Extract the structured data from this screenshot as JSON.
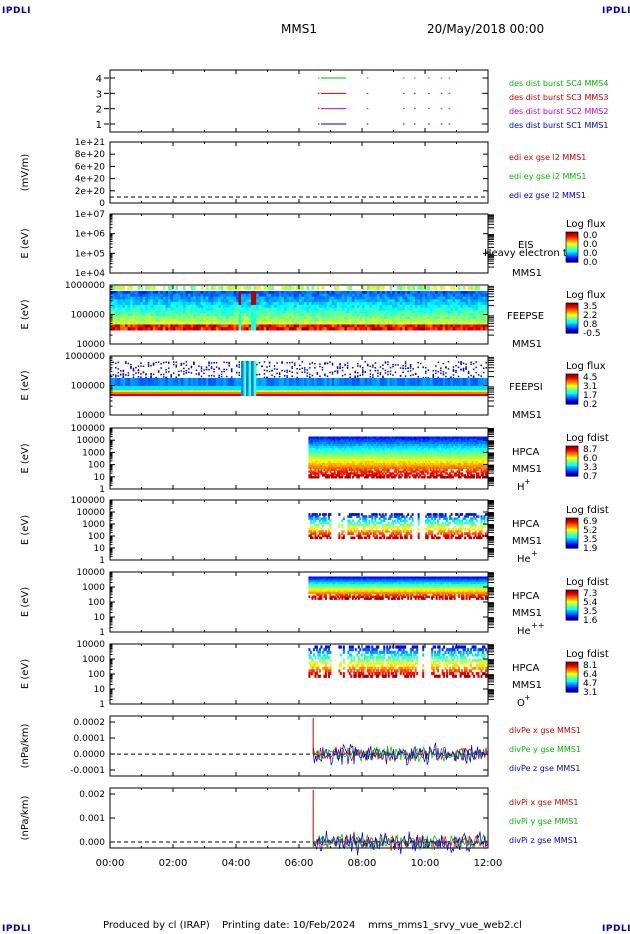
{
  "corners": {
    "top_left": "IPDLI",
    "top_right": "IPDLI",
    "bottom_left": "IPDLI",
    "bottom_right": "IPDLI"
  },
  "header": {
    "title": "MMS1",
    "date": "20/May/2018 00:00"
  },
  "footer": {
    "produced": "Produced by cl (IRAP)",
    "printing": "Printing date: 10/Feb/2024",
    "script": "mms_mms1_srvy_vue_web2.cl"
  },
  "colors": {
    "red": "#cc0000",
    "magenta": "#cc00cc",
    "green": "#00bb00",
    "blue": "#0000cc"
  },
  "chart_data": [
    {
      "type": "line",
      "panel": "burst",
      "x_range": [
        "00:00",
        "12:00"
      ],
      "yticks": [
        "1",
        "2",
        "3",
        "4"
      ],
      "series": [
        {
          "name": "des dist burst SC1 MMS1",
          "color": "#0000cc",
          "level": 1,
          "intervals": [
            [
              6.6,
              6.65
            ],
            [
              6.7,
              7.5
            ],
            [
              8.15,
              8.2
            ],
            [
              9.3,
              9.35
            ],
            [
              9.65,
              9.7
            ],
            [
              10.1,
              10.15
            ],
            [
              10.5,
              10.55
            ],
            [
              10.75,
              10.8
            ],
            [
              11.8,
              11.85
            ]
          ]
        },
        {
          "name": "des dist burst SC2 MMS2",
          "color": "#cc00cc",
          "level": 2,
          "intervals": [
            [
              6.6,
              6.65
            ],
            [
              6.7,
              7.5
            ],
            [
              8.15,
              8.2
            ],
            [
              9.3,
              9.35
            ],
            [
              9.65,
              9.7
            ],
            [
              10.1,
              10.15
            ],
            [
              10.5,
              10.55
            ],
            [
              10.75,
              10.8
            ],
            [
              11.8,
              11.85
            ]
          ]
        },
        {
          "name": "des dist burst SC3 MMS3",
          "color": "#cc0000",
          "level": 3,
          "intervals": [
            [
              6.6,
              6.65
            ],
            [
              6.7,
              7.5
            ],
            [
              8.15,
              8.2
            ],
            [
              9.3,
              9.35
            ],
            [
              9.65,
              9.7
            ],
            [
              10.1,
              10.15
            ],
            [
              10.5,
              10.55
            ],
            [
              10.75,
              10.8
            ],
            [
              11.8,
              11.85
            ]
          ]
        },
        {
          "name": "des dist burst SC4 MMS4",
          "color": "#00bb00",
          "level": 4,
          "intervals": [
            [
              6.6,
              6.65
            ],
            [
              6.7,
              7.5
            ],
            [
              8.15,
              8.2
            ],
            [
              9.3,
              9.35
            ],
            [
              9.65,
              9.7
            ],
            [
              10.1,
              10.15
            ],
            [
              10.5,
              10.55
            ],
            [
              10.75,
              10.8
            ],
            [
              11.8,
              11.85
            ]
          ]
        }
      ]
    },
    {
      "type": "line",
      "panel": "edi",
      "ylabel": "(mV/m)",
      "yticks": [
        "0",
        "2e+20",
        "4e+20",
        "6e+20",
        "8e+20",
        "1e+21"
      ],
      "series": [
        {
          "name": "edi ex gse l2 MMS1",
          "color": "#cc0000"
        },
        {
          "name": "edi ey gse l2 MMS1",
          "color": "#00bb00"
        },
        {
          "name": "edi ez gse l2 MMS1",
          "color": "#0000cc"
        }
      ]
    },
    {
      "type": "heatmap",
      "panel": "eis",
      "ylabel": "E (eV)",
      "yticks": [
        "1e+04",
        "1e+05",
        "1e+06",
        "1e+07"
      ],
      "labels": [
        "EIS",
        "MMS1"
      ],
      "overlay": "Heavy electron to",
      "colorbar": {
        "title": "Log flux",
        "ticks": [
          "0.0",
          "0.0",
          "0.0",
          "0.0"
        ]
      }
    },
    {
      "type": "heatmap",
      "panel": "feepse",
      "ylabel": "E (eV)",
      "yticks": [
        "10000",
        "100000",
        "1000000"
      ],
      "labels": [
        "FEEPSE",
        "MMS1"
      ],
      "colorbar": {
        "title": "Log flux",
        "ticks": [
          "3.5",
          "2.2",
          "0.8",
          "-0.5"
        ]
      }
    },
    {
      "type": "heatmap",
      "panel": "feepsi",
      "ylabel": "E (eV)",
      "yticks": [
        "10000",
        "100000",
        "1000000"
      ],
      "labels": [
        "FEEPSI",
        "MMS1"
      ],
      "colorbar": {
        "title": "Log flux",
        "ticks": [
          "4.5",
          "3.1",
          "1.7",
          "0.2"
        ]
      }
    },
    {
      "type": "heatmap",
      "panel": "hpca_h",
      "ylabel": "E (eV)",
      "yticks": [
        "1",
        "10",
        "100",
        "1000",
        "10000",
        "100000"
      ],
      "labels": [
        "HPCA",
        "MMS1"
      ],
      "species": "H",
      "charge": "+",
      "colorbar": {
        "title": "Log fdist",
        "ticks": [
          "8.7",
          "6.0",
          "3.3",
          "0.7"
        ]
      }
    },
    {
      "type": "heatmap",
      "panel": "hpca_he",
      "ylabel": "E (eV)",
      "yticks": [
        "1",
        "10",
        "100",
        "1000",
        "10000",
        "100000"
      ],
      "labels": [
        "HPCA",
        "MMS1"
      ],
      "species": "He",
      "charge": "+",
      "colorbar": {
        "title": "Log fdist",
        "ticks": [
          "6.9",
          "5.2",
          "3.5",
          "1.9"
        ]
      }
    },
    {
      "type": "heatmap",
      "panel": "hpca_hepp",
      "ylabel": "E (eV)",
      "yticks": [
        "1",
        "10",
        "100",
        "1000",
        "10000"
      ],
      "labels": [
        "HPCA",
        "MMS1"
      ],
      "species": "He",
      "charge": "++",
      "colorbar": {
        "title": "Log fdist",
        "ticks": [
          "7.3",
          "5.4",
          "3.5",
          "1.6"
        ]
      }
    },
    {
      "type": "heatmap",
      "panel": "hpca_o",
      "ylabel": "E (eV)",
      "yticks": [
        "1",
        "10",
        "100",
        "1000",
        "10000"
      ],
      "labels": [
        "HPCA",
        "MMS1"
      ],
      "species": "O",
      "charge": "+",
      "colorbar": {
        "title": "Log fdist",
        "ticks": [
          "8.1",
          "6.4",
          "4.7",
          "3.1"
        ]
      }
    },
    {
      "type": "line",
      "panel": "divpe",
      "ylabel": "(nPa/km)",
      "yticks": [
        "-0.0001",
        "0.0000",
        "0.0001",
        "0.0002"
      ],
      "series": [
        {
          "name": "divPe x gse MMS1",
          "color": "#cc0000"
        },
        {
          "name": "divPe y gse MMS1",
          "color": "#00bb00"
        },
        {
          "name": "divPe z gse MMS1",
          "color": "#0000cc"
        }
      ]
    },
    {
      "type": "line",
      "panel": "divpi",
      "ylabel": "(nPa/km)",
      "yticks": [
        "0.000",
        "0.001",
        "0.002"
      ],
      "xticks": [
        "00:00",
        "02:00",
        "04:00",
        "06:00",
        "08:00",
        "10:00",
        "12:00"
      ],
      "series": [
        {
          "name": "divPi x gse MMS1",
          "color": "#cc0000"
        },
        {
          "name": "divPi y gse MMS1",
          "color": "#00bb00"
        },
        {
          "name": "divPi z gse MMS1",
          "color": "#0000cc"
        }
      ]
    }
  ]
}
